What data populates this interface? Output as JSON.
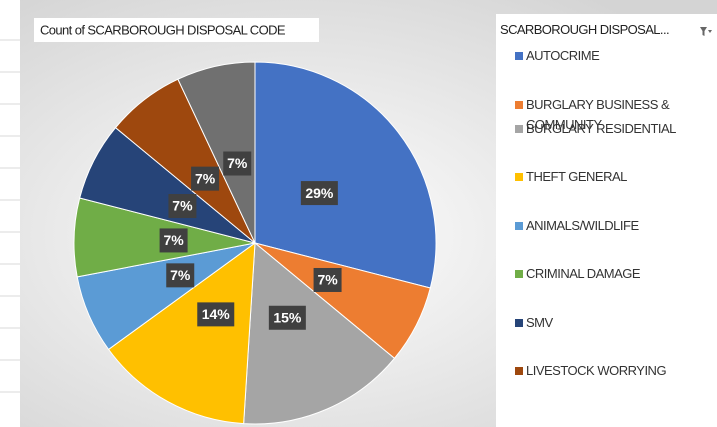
{
  "chart_data": {
    "type": "pie",
    "title": "Count of SCARBOROUGH DISPOSAL CODE",
    "legend_title": "SCARBOROUGH DISPOSAL...",
    "categories": [
      "AUTOCRIME",
      "BURGLARY BUSINESS & COMMUNITY",
      "BURGLARY RESIDENTIAL",
      "THEFT GENERAL",
      "ANIMALS/WILDLIFE",
      "CRIMINAL DAMAGE",
      "SMV",
      "LIVESTOCK WORRYING",
      null
    ],
    "values": [
      29,
      7,
      15,
      14,
      7,
      7,
      7,
      7,
      7
    ],
    "value_labels": [
      "29%",
      "7%",
      "15%",
      "14%",
      "7%",
      "7%",
      "7%",
      "7%",
      "7%"
    ],
    "colors": [
      "#4472c4",
      "#ed7d31",
      "#a5a5a5",
      "#ffc000",
      "#5b9bd5",
      "#70ad47",
      "#264478",
      "#9e480e",
      "#707070"
    ],
    "legend": "right"
  }
}
